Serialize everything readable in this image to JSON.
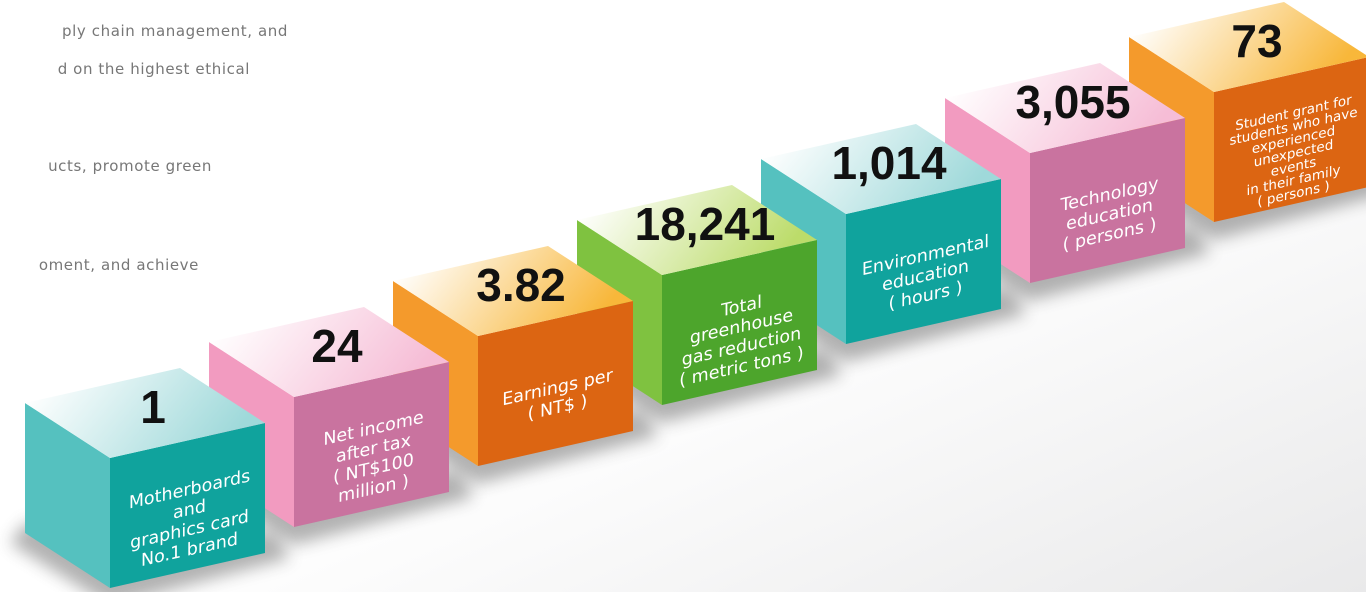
{
  "intro_lines": [
    "ply chain management, and",
    "d on the highest ethical",
    "ucts, promote green",
    "oment, and achieve"
  ],
  "cubes": [
    {
      "value": "1",
      "label_lines": [
        "Motherboards",
        "and",
        "graphics card",
        "No.1 brand"
      ]
    },
    {
      "value": "24",
      "label_lines": [
        "Net income",
        "after tax",
        "( NT$100",
        "million )"
      ]
    },
    {
      "value": "3.82",
      "label_lines": [
        "Earnings per",
        "( NT$ )"
      ]
    },
    {
      "value": "18,241",
      "label_lines": [
        "Total",
        "greenhouse",
        "gas reduction",
        "( metric tons )"
      ]
    },
    {
      "value": "1,014",
      "label_lines": [
        "Environmental",
        "education",
        "( hours )"
      ]
    },
    {
      "value": "3,055",
      "label_lines": [
        "Technology",
        "education",
        "( persons )"
      ]
    },
    {
      "value": "73",
      "label_lines": [
        "Student grant for",
        "students who have",
        "experienced",
        "unexpected",
        "events",
        "in their family",
        "( persons )"
      ]
    }
  ]
}
